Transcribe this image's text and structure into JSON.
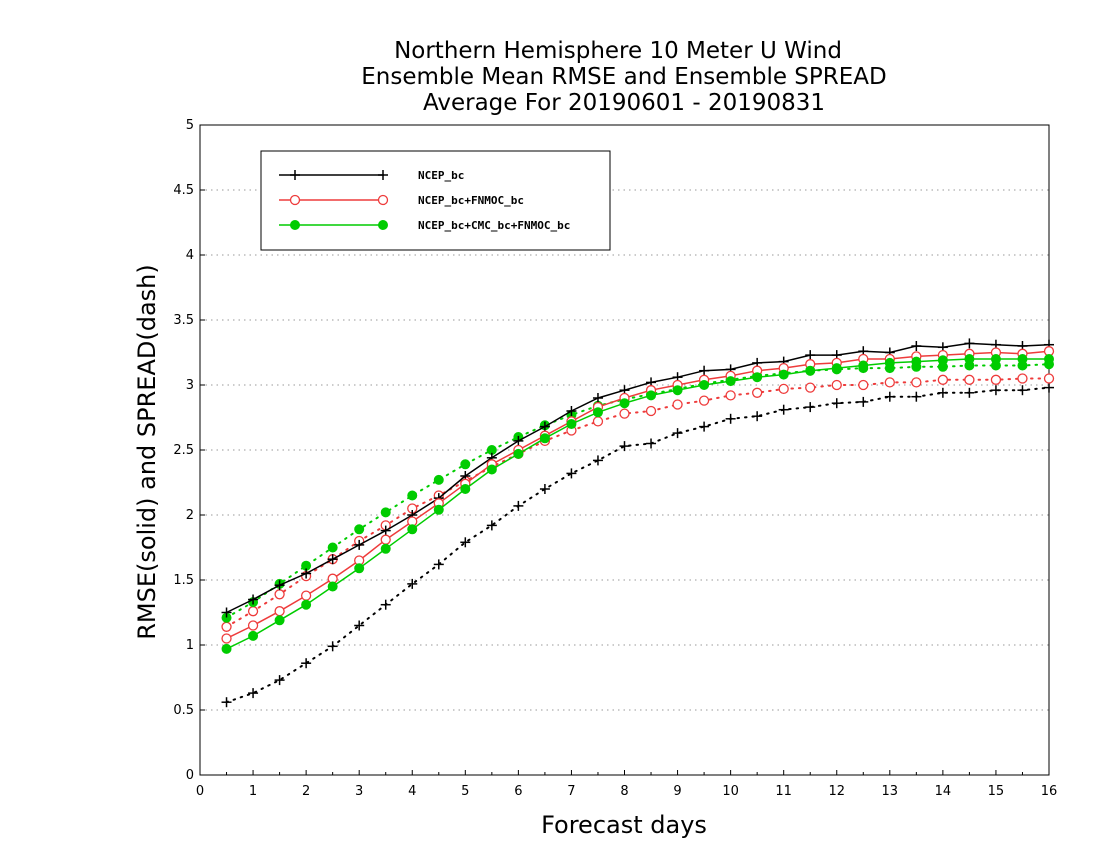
{
  "chart_data": {
    "type": "line",
    "title_lines": [
      "Northern Hemisphere 10 Meter U Wind",
      "Ensemble Mean RMSE and Ensemble SPREAD",
      "Average For 20190601 - 20190831"
    ],
    "xlabel": "Forecast days",
    "ylabel": "RMSE(solid) and SPREAD(dash)",
    "xlim": [
      0,
      16
    ],
    "ylim": [
      0,
      5
    ],
    "x_ticks": [
      "0",
      "1",
      "2",
      "3",
      "4",
      "5",
      "6",
      "7",
      "8",
      "9",
      "10",
      "11",
      "12",
      "13",
      "14",
      "15",
      "16"
    ],
    "y_ticks": [
      "0",
      "0.5",
      "1",
      "1.5",
      "2",
      "2.5",
      "3",
      "3.5",
      "4",
      "4.5",
      "5"
    ],
    "grid": true,
    "legend_position": "top-left",
    "x": [
      0.5,
      1,
      1.5,
      2,
      2.5,
      3,
      3.5,
      4,
      4.5,
      5,
      5.5,
      6,
      6.5,
      7,
      7.5,
      8,
      8.5,
      9,
      9.5,
      10,
      10.5,
      11,
      11.5,
      12,
      12.5,
      13,
      13.5,
      14,
      14.5,
      15,
      15.5,
      16
    ],
    "series": [
      {
        "name": "NCEP_bc",
        "color": "#000000",
        "marker": "plus",
        "rmse": [
          1.25,
          1.35,
          1.46,
          1.55,
          1.66,
          1.77,
          1.88,
          2.0,
          2.13,
          2.3,
          2.44,
          2.57,
          2.68,
          2.8,
          2.9,
          2.96,
          3.02,
          3.06,
          3.11,
          3.12,
          3.17,
          3.18,
          3.23,
          3.23,
          3.26,
          3.25,
          3.3,
          3.29,
          3.32,
          3.31,
          3.3,
          3.31
        ],
        "spread": [
          0.56,
          0.63,
          0.73,
          0.86,
          0.99,
          1.15,
          1.31,
          1.47,
          1.62,
          1.79,
          1.92,
          2.07,
          2.2,
          2.32,
          2.42,
          2.53,
          2.55,
          2.63,
          2.68,
          2.74,
          2.76,
          2.81,
          2.83,
          2.86,
          2.87,
          2.91,
          2.91,
          2.94,
          2.94,
          2.96,
          2.96,
          2.98
        ]
      },
      {
        "name": "NCEP_bc+FNMOC_bc",
        "color": "#ee3b3b",
        "marker": "open-circle",
        "rmse": [
          1.05,
          1.15,
          1.26,
          1.38,
          1.51,
          1.65,
          1.81,
          1.95,
          2.09,
          2.24,
          2.39,
          2.5,
          2.61,
          2.72,
          2.83,
          2.9,
          2.96,
          3.0,
          3.04,
          3.07,
          3.11,
          3.13,
          3.16,
          3.17,
          3.2,
          3.2,
          3.22,
          3.23,
          3.24,
          3.25,
          3.24,
          3.26
        ],
        "spread": [
          1.14,
          1.26,
          1.39,
          1.53,
          1.66,
          1.8,
          1.92,
          2.05,
          2.15,
          2.26,
          2.37,
          2.47,
          2.57,
          2.65,
          2.72,
          2.78,
          2.8,
          2.85,
          2.88,
          2.92,
          2.94,
          2.97,
          2.98,
          3.0,
          3.0,
          3.02,
          3.02,
          3.04,
          3.04,
          3.04,
          3.05,
          3.05
        ]
      },
      {
        "name": "NCEP_bc+CMC_bc+FNMOC_bc",
        "color": "#00cc00",
        "marker": "filled-circle",
        "rmse": [
          0.97,
          1.07,
          1.19,
          1.31,
          1.45,
          1.59,
          1.74,
          1.89,
          2.04,
          2.2,
          2.35,
          2.47,
          2.59,
          2.7,
          2.79,
          2.86,
          2.92,
          2.96,
          3.0,
          3.03,
          3.06,
          3.08,
          3.11,
          3.13,
          3.15,
          3.17,
          3.18,
          3.19,
          3.2,
          3.2,
          3.2,
          3.2
        ],
        "spread": [
          1.21,
          1.33,
          1.47,
          1.61,
          1.75,
          1.89,
          2.02,
          2.15,
          2.27,
          2.39,
          2.5,
          2.6,
          2.69,
          2.77,
          2.84,
          2.89,
          2.93,
          2.97,
          3.01,
          3.04,
          3.07,
          3.09,
          3.11,
          3.12,
          3.13,
          3.13,
          3.14,
          3.14,
          3.15,
          3.15,
          3.15,
          3.16
        ]
      }
    ]
  }
}
